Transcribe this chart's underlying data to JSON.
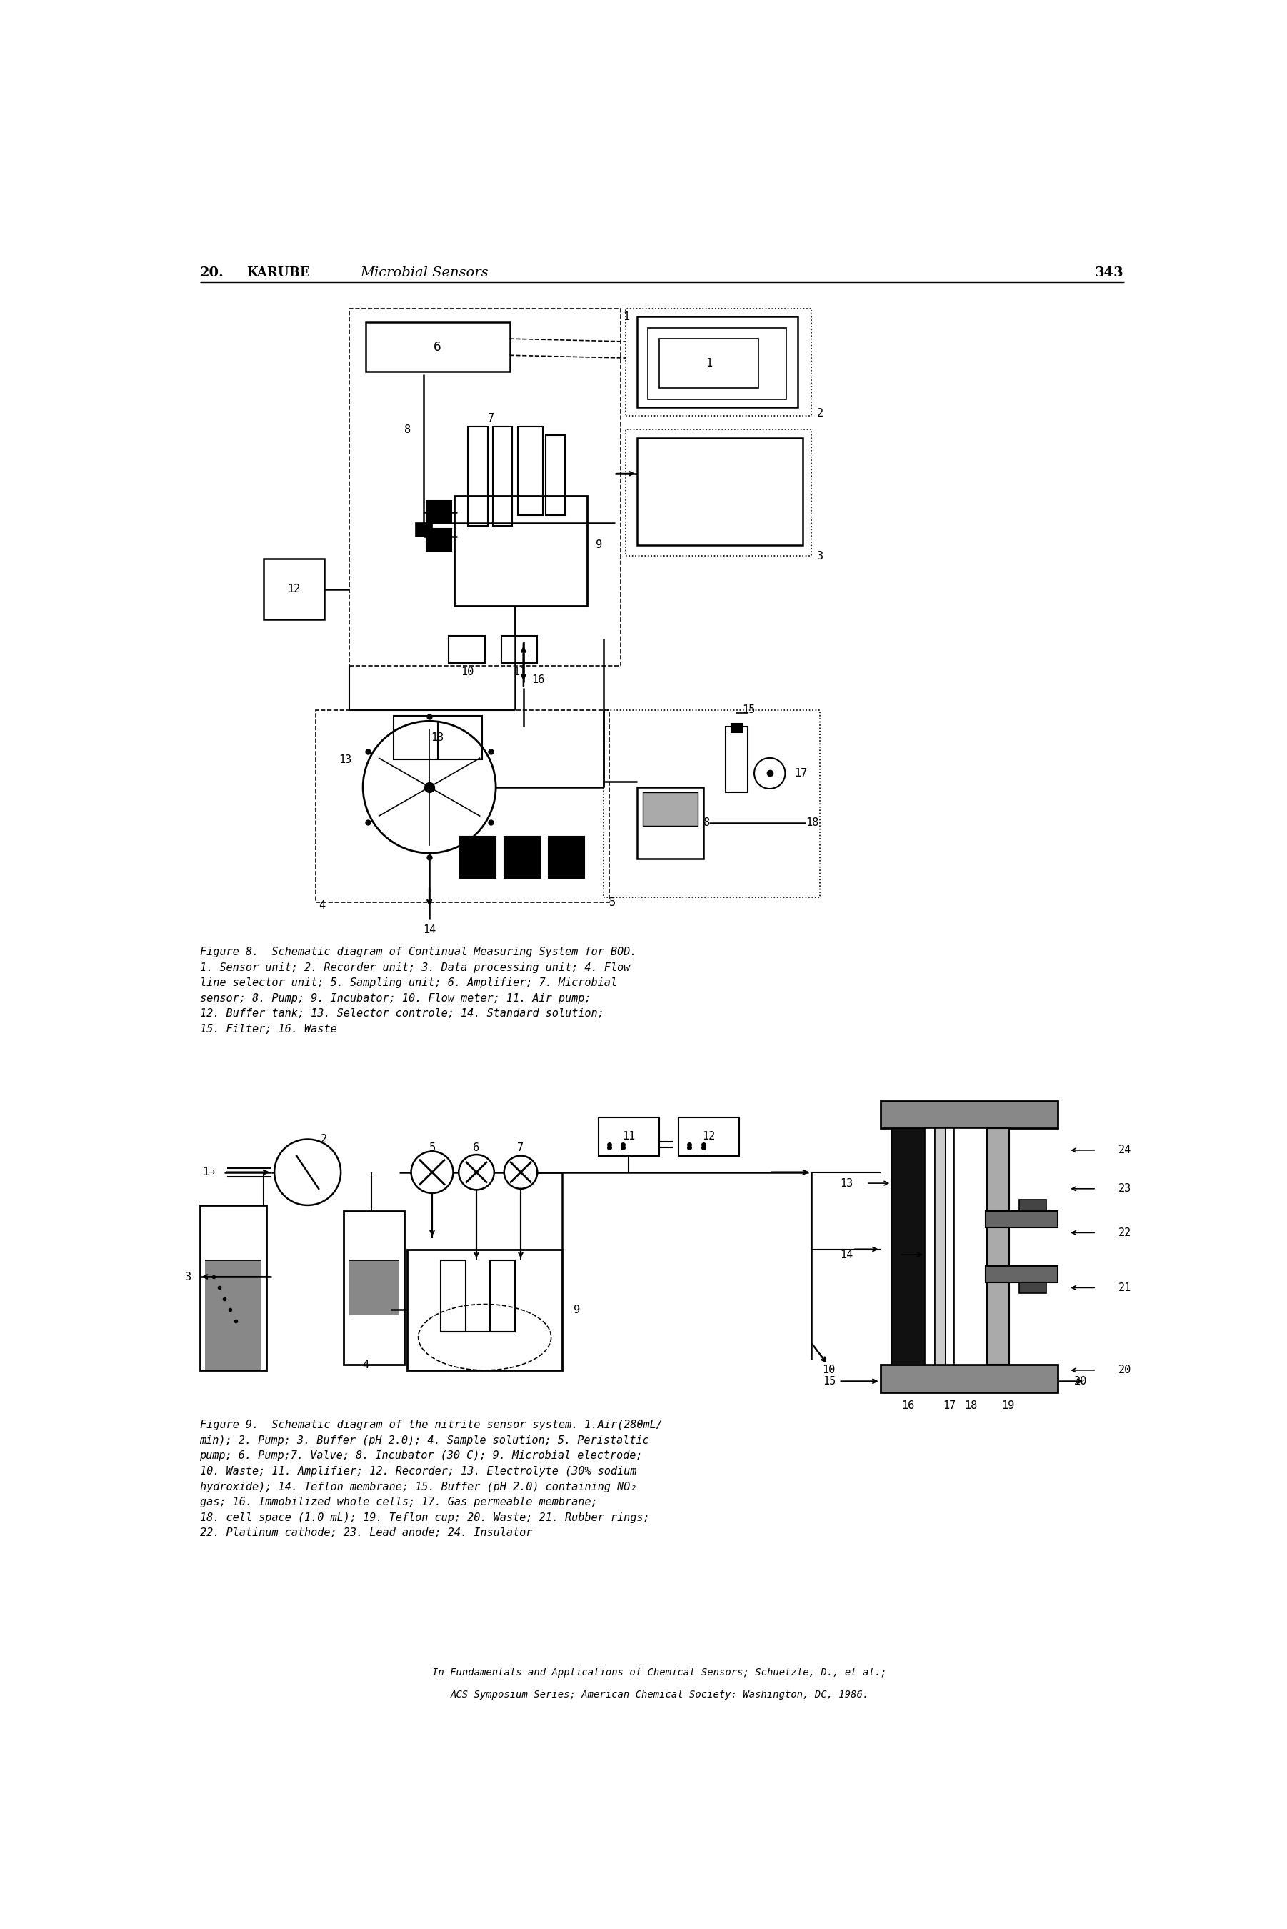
{
  "header_num": "20.",
  "header_name": "KARUBE",
  "header_italic": "Microbial Sensors",
  "header_page": "343",
  "fig8_caption": "Figure 8.  Schematic diagram of Continual Measuring System for BOD.\n1. Sensor unit; 2. Recorder unit; 3. Data processing unit; 4. Flow\nline selector unit; 5. Sampling unit; 6. Amplifier; 7. Microbial\nsensor; 8. Pump; 9. Incubator; 10. Flow meter; 11. Air pump;\n12. Buffer tank; 13. Selector controle; 14. Standard solution;\n15. Filter; 16. Waste",
  "fig9_caption": "Figure 9.  Schematic diagram of the nitrite sensor system. 1.Air(280mL/\nmin); 2. Pump; 3. Buffer (pH 2.0); 4. Sample solution; 5. Peristaltic\npump; 6. Pump;7. Valve; 8. Incubator (30 C); 9. Microbial electrode;\n10. Waste; 11. Amplifier; 12. Recorder; 13. Electrolyte (30% sodium\nhydroxide); 14. Teflon membrane; 15. Buffer (pH 2.0) containing NO₂\ngas; 16. Immobilized whole cells; 17. Gas permeable membrane;\n18. cell space (1.0 mL); 19. Teflon cup; 20. Waste; 21. Rubber rings;\n22. Platinum cathode; 23. Lead anode; 24. Insulator",
  "footer_line1": "In Fundamentals and Applications of Chemical Sensors; Schuetzle, D., et al.;",
  "footer_line2": "ACS Symposium Series; American Chemical Society: Washington, DC, 1986.",
  "bg_color": "#ffffff",
  "text_color": "#000000"
}
